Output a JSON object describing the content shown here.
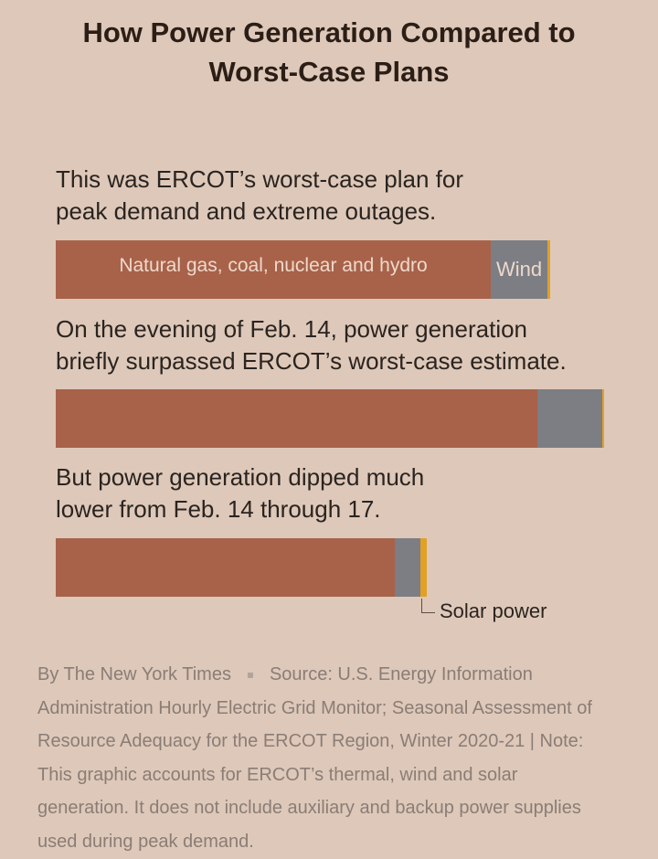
{
  "title_lines": [
    "How Power Generation Compared to",
    "Worst-Case Plans"
  ],
  "colors": {
    "background": "#dec8b9",
    "thermal": "#a8624a",
    "wind": "#7c7e84",
    "solar": "#e2a124"
  },
  "chart_data": {
    "type": "bar",
    "orientation": "horizontal",
    "stacked": true,
    "categories": [
      "This was ERCOT’s worst-case plan for peak demand and extreme outages.",
      "On the evening of Feb. 14, power generation briefly surpassed ERCOT’s worst-case estimate.",
      "But power generation dipped much lower from Feb. 14 through 17."
    ],
    "series": [
      {
        "name": "Natural gas, coal, nuclear and hydro",
        "values": [
          476,
          527,
          371
        ],
        "color": "#a8624a"
      },
      {
        "name": "Wind",
        "values": [
          62,
          71,
          28
        ],
        "color": "#7c7e84"
      },
      {
        "name": "Solar power",
        "values": [
          3,
          2,
          7
        ],
        "color": "#e2a124"
      }
    ]
  },
  "captions": [
    [
      "This was ERCOT’s worst-case plan for",
      "peak demand and extreme outages."
    ],
    [
      "On the evening of Feb. 14, power generation",
      "briefly surpassed ERCOT’s worst-case estimate."
    ],
    [
      "But power generation dipped much",
      "lower from Feb. 14 through 17."
    ]
  ],
  "labels": {
    "thermal": "Natural gas, coal, nuclear and hydro",
    "wind": "Wind",
    "solar": "Solar power"
  },
  "footer": {
    "byline": "By The New York Times",
    "source_lines": [
      "Source: U.S. Energy Information",
      "Administration Hourly Electric Grid Monitor; Seasonal Assessment of",
      "Resource Adequacy for the ERCOT Region, Winter 2020-21 | Note:",
      "This graphic accounts for ERCOT’s thermal, wind and solar",
      "generation. It does not include auxiliary and backup power supplies",
      "used during peak demand."
    ]
  }
}
